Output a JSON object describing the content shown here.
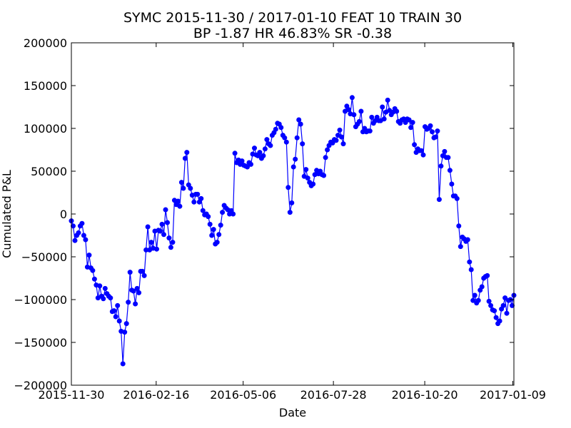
{
  "chart_data": {
    "type": "line",
    "title_line1": "SYMC 2015-11-30 / 2017-01-10 FEAT 10 TRAIN 30",
    "title_line2": "BP -1.87 HR 46.83%  SR -0.38",
    "xlabel": "Date",
    "ylabel": "Cumulated P&L",
    "x_tick_labels": [
      "2015-11-30",
      "2016-02-16",
      "2016-05-06",
      "2016-07-28",
      "2016-10-20",
      "2017-01-09"
    ],
    "y_tick_labels": [
      "200000",
      "150000",
      "100000",
      "50000",
      "0",
      "−50000",
      "−100000",
      "−150000",
      "−200000"
    ],
    "y_ticks": [
      200000,
      150000,
      100000,
      50000,
      0,
      -50000,
      -100000,
      -150000,
      -200000
    ],
    "ylim": [
      -200000,
      200000
    ],
    "xlim": [
      "2015-11-30",
      "2017-01-10"
    ],
    "grid": false,
    "line_color": "#0000ff",
    "marker": "circle",
    "series": [
      {
        "values": [
          -8000,
          -14000,
          -31000,
          -25000,
          -22000,
          -14000,
          -11000,
          -25000,
          -30000,
          -62000,
          -48000,
          -63000,
          -66000,
          -76000,
          -83000,
          -98000,
          -84000,
          -96000,
          -99000,
          -87000,
          -93000,
          -96000,
          -98000,
          -114000,
          -113000,
          -120000,
          -107000,
          -125000,
          -137000,
          -175000,
          -138000,
          -128000,
          -103000,
          -68000,
          -89000,
          -90000,
          -105000,
          -87000,
          -92000,
          -67000,
          -67000,
          -72000,
          -42000,
          -15000,
          -42000,
          -33000,
          -40000,
          -20000,
          -41000,
          -19000,
          -20000,
          -12000,
          -24000,
          5000,
          -10000,
          -28000,
          -39000,
          -33000,
          16000,
          11000,
          15000,
          9000,
          37000,
          30000,
          65000,
          72000,
          34000,
          30000,
          22000,
          14000,
          23000,
          23000,
          14000,
          18000,
          4000,
          -1000,
          0,
          -3000,
          -12000,
          -25000,
          -18000,
          -35000,
          -33000,
          -24000,
          -13000,
          2000,
          10000,
          7000,
          5000,
          0,
          4000,
          0,
          71000,
          60000,
          63000,
          58000,
          62000,
          57000,
          56000,
          55000,
          60000,
          58000,
          70000,
          77000,
          69000,
          68000,
          72000,
          65000,
          68000,
          76000,
          87000,
          82000,
          80000,
          92000,
          95000,
          99000,
          106000,
          105000,
          101000,
          92000,
          89000,
          84000,
          31000,
          2000,
          13000,
          55000,
          64000,
          89000,
          110000,
          105000,
          82000,
          44000,
          52000,
          42000,
          37000,
          33000,
          35000,
          46000,
          51000,
          47000,
          50000,
          46000,
          45000,
          66000,
          75000,
          80000,
          84000,
          83000,
          87000,
          86000,
          92000,
          98000,
          90000,
          82000,
          120000,
          126000,
          122000,
          117000,
          136000,
          116000,
          102000,
          105000,
          108000,
          120000,
          96000,
          100000,
          96000,
          97000,
          97000,
          113000,
          106000,
          109000,
          113000,
          109000,
          109000,
          125000,
          111000,
          119000,
          133000,
          121000,
          116000,
          119000,
          123000,
          120000,
          108000,
          106000,
          110000,
          111000,
          107000,
          111000,
          110000,
          101000,
          107000,
          81000,
          72000,
          76000,
          74000,
          74000,
          69000,
          102000,
          99000,
          100000,
          103000,
          96000,
          89000,
          90000,
          97000,
          17000,
          56000,
          68000,
          73000,
          66000,
          66000,
          51000,
          35000,
          21000,
          21000,
          18000,
          -14000,
          -38000,
          -27000,
          -29000,
          -32000,
          -30000,
          -56000,
          -65000,
          -101000,
          -95000,
          -104000,
          -101000,
          -89000,
          -85000,
          -75000,
          -73000,
          -72000,
          -102000,
          -107000,
          -112000,
          -113000,
          -121000,
          -128000,
          -125000,
          -111000,
          -107000,
          -98000,
          -116000,
          -101000,
          -100000,
          -107000,
          -95000
        ]
      }
    ]
  }
}
